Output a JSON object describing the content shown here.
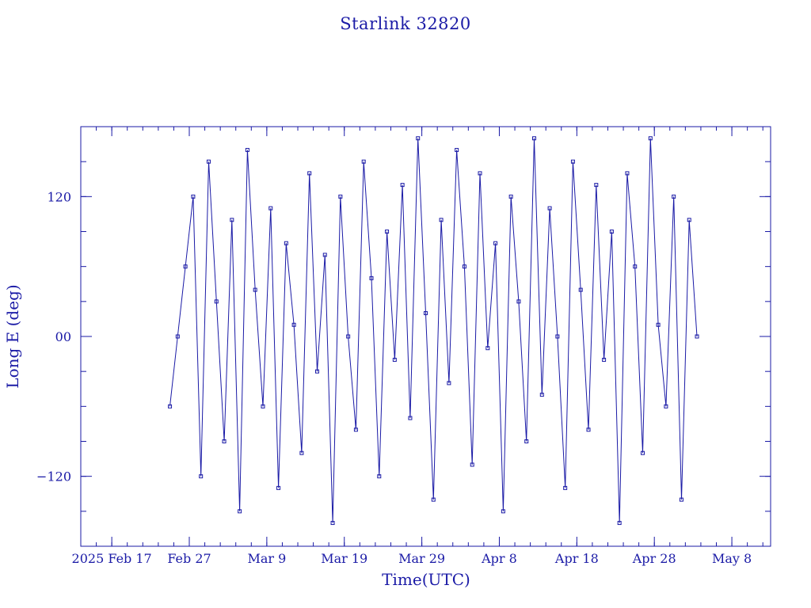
{
  "chart_data": {
    "type": "line",
    "title": "Starlink 32820",
    "xlabel": "Time(UTC)",
    "ylabel": "Long E (deg)",
    "xlim": [
      "2025-02-13",
      "2025-05-13"
    ],
    "ylim": [
      -180,
      180
    ],
    "x_ticks": [
      {
        "date": "2025-02-17",
        "label": "2025 Feb 17"
      },
      {
        "date": "2025-02-27",
        "label": "Feb 27"
      },
      {
        "date": "2025-03-09",
        "label": "Mar  9"
      },
      {
        "date": "2025-03-19",
        "label": "Mar 19"
      },
      {
        "date": "2025-03-29",
        "label": "Mar 29"
      },
      {
        "date": "2025-04-08",
        "label": "Apr  8"
      },
      {
        "date": "2025-04-18",
        "label": "Apr 18"
      },
      {
        "date": "2025-04-28",
        "label": "Apr 28"
      },
      {
        "date": "2025-05-08",
        "label": "May  8"
      }
    ],
    "y_ticks": [
      {
        "value": 120,
        "label": "120"
      },
      {
        "value": 0,
        "label": "00"
      },
      {
        "value": -120,
        "label": "−120"
      }
    ],
    "color": "#1a1aa6",
    "marker": "square",
    "grid": false,
    "series": [
      {
        "x": [
          "2025-02-24T12:00",
          "2025-02-25T12:00",
          "2025-02-26T12:00",
          "2025-02-27T12:00",
          "2025-02-28T12:00",
          "2025-03-01T12:00",
          "2025-03-02T12:00",
          "2025-03-03T12:00",
          "2025-03-04T12:00",
          "2025-03-05T12:00",
          "2025-03-06T12:00",
          "2025-03-07T12:00",
          "2025-03-08T12:00",
          "2025-03-09T12:00",
          "2025-03-10T12:00",
          "2025-03-11T12:00",
          "2025-03-12T12:00",
          "2025-03-13T12:00",
          "2025-03-14T12:00",
          "2025-03-15T12:00",
          "2025-03-16T12:00",
          "2025-03-17T12:00",
          "2025-03-18T12:00",
          "2025-03-19T12:00",
          "2025-03-20T12:00",
          "2025-03-21T12:00",
          "2025-03-22T12:00",
          "2025-03-23T12:00",
          "2025-03-24T12:00",
          "2025-03-25T12:00",
          "2025-03-26T12:00",
          "2025-03-27T12:00",
          "2025-03-28T12:00",
          "2025-03-29T12:00",
          "2025-03-30T12:00",
          "2025-03-31T12:00",
          "2025-04-01T12:00",
          "2025-04-02T12:00",
          "2025-04-03T12:00",
          "2025-04-04T12:00",
          "2025-04-05T12:00",
          "2025-04-06T12:00",
          "2025-04-07T12:00",
          "2025-04-08T12:00",
          "2025-04-09T12:00",
          "2025-04-10T12:00",
          "2025-04-11T12:00",
          "2025-04-12T12:00",
          "2025-04-13T12:00",
          "2025-04-14T12:00",
          "2025-04-15T12:00",
          "2025-04-16T12:00",
          "2025-04-17T12:00",
          "2025-04-18T12:00",
          "2025-04-19T12:00",
          "2025-04-20T12:00",
          "2025-04-21T12:00",
          "2025-04-22T12:00",
          "2025-04-23T12:00",
          "2025-04-24T12:00",
          "2025-04-25T12:00",
          "2025-04-26T12:00",
          "2025-04-27T12:00",
          "2025-04-28T12:00",
          "2025-04-29T12:00",
          "2025-04-30T12:00",
          "2025-05-01T12:00",
          "2025-05-02T12:00",
          "2025-05-03T12:00"
        ],
        "y": [
          -60,
          0,
          60,
          120,
          -120,
          150,
          30,
          -90,
          100,
          -150,
          160,
          40,
          -60,
          110,
          -130,
          80,
          10,
          -100,
          140,
          -30,
          70,
          -160,
          120,
          0,
          -80,
          150,
          50,
          -120,
          90,
          -20,
          130,
          -70,
          170,
          20,
          -140,
          100,
          -40,
          160,
          60,
          -110,
          140,
          -10,
          80,
          -150,
          120,
          30,
          -90,
          170,
          -50,
          110,
          0,
          -130,
          150,
          40,
          -80,
          130,
          -20,
          90,
          -160,
          140,
          60,
          -100,
          170,
          10,
          -60,
          120,
          -140,
          100,
          0
        ]
      }
    ]
  }
}
